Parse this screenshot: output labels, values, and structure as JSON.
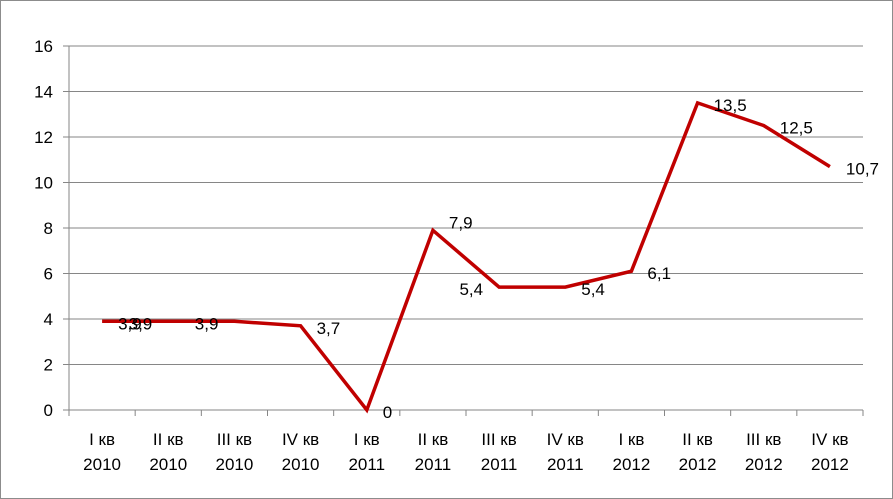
{
  "chart_data": {
    "type": "line",
    "title": "",
    "xlabel": "",
    "ylabel": "",
    "categories": [
      [
        "I кв",
        "2010"
      ],
      [
        "II кв",
        "2010"
      ],
      [
        "III кв",
        "2010"
      ],
      [
        "IV кв",
        "2010"
      ],
      [
        "I кв",
        "2011"
      ],
      [
        "II кв",
        "2011"
      ],
      [
        "III кв",
        "2011"
      ],
      [
        "IV кв",
        "2011"
      ],
      [
        "I кв",
        "2012"
      ],
      [
        "II кв",
        "2012"
      ],
      [
        "III кв",
        "2012"
      ],
      [
        "IV кв",
        "2012"
      ]
    ],
    "series": [
      {
        "values": [
          3.9,
          3.9,
          3.9,
          3.7,
          0,
          7.9,
          5.4,
          5.4,
          6.1,
          13.5,
          12.5,
          10.7
        ],
        "labels": [
          "3,9",
          "3,9",
          "3,9",
          "3,7",
          "0",
          "7,9",
          "5,4",
          "5,4",
          "6,1",
          "13,5",
          "12,5",
          "10,7"
        ],
        "color": "#c00000"
      }
    ],
    "ylim": [
      0,
      16
    ],
    "yticks": [
      0,
      2,
      4,
      6,
      8,
      10,
      12,
      14,
      16
    ],
    "grid": true,
    "legend": "none"
  }
}
